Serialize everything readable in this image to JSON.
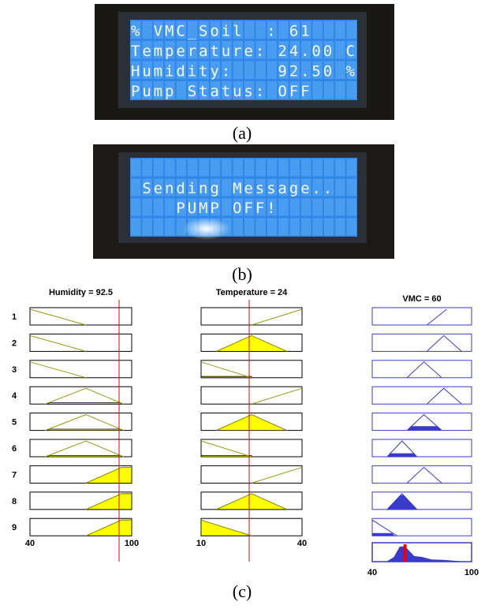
{
  "panel_a": {
    "lcd_lines": [
      "% VMC_Soil  : 61",
      "Temperature: 24.00 C",
      "Humidity:    92.50 %",
      "Pump Status: OFF"
    ],
    "caption": "(a)"
  },
  "panel_b": {
    "lcd_lines": [
      " Sending Message..",
      "    PUMP OFF!"
    ],
    "caption": "(b)"
  },
  "panel_c": {
    "columns": [
      {
        "title": "Humidity = 92.5",
        "axis_labels": [
          "40",
          "100"
        ]
      },
      {
        "title": "Temperature = 24",
        "axis_labels": [
          "10",
          "40"
        ]
      },
      {
        "title": "VMC = 60",
        "axis_labels": [
          "40",
          "100"
        ]
      }
    ],
    "rule_numbers": [
      "1",
      "2",
      "3",
      "4",
      "5",
      "6",
      "7",
      "8",
      "9"
    ],
    "caption": "(c)"
  }
}
